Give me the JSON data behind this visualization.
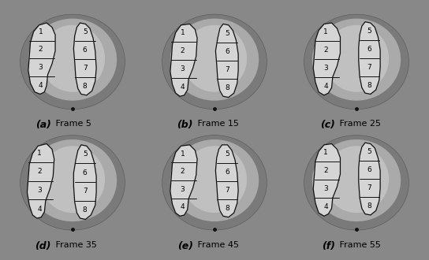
{
  "panels": [
    {
      "label": "a",
      "frame": "Frame 5",
      "row": 0,
      "col": 0
    },
    {
      "label": "b",
      "frame": "Frame 15",
      "row": 0,
      "col": 1
    },
    {
      "label": "c",
      "frame": "Frame 25",
      "row": 0,
      "col": 2
    },
    {
      "label": "d",
      "frame": "Frame 35",
      "row": 1,
      "col": 0
    },
    {
      "label": "e",
      "frame": "Frame 45",
      "row": 1,
      "col": 1
    },
    {
      "label": "f",
      "frame": "Frame 55",
      "row": 1,
      "col": 2
    }
  ],
  "nrows": 2,
  "ncols": 3,
  "fig_bg": "#888888",
  "panel_bg": "#555555",
  "outer_ellipse_fc": "#999999",
  "inner_ellipse_fc": "#bbbbbb",
  "lung_fill": "#e0e0e0",
  "lung_edge": "#111111",
  "line_color": "#111111",
  "text_color": "#000000",
  "label_fontsize": 8,
  "number_fontsize": 6.5,
  "label_bold_fontsize": 9
}
